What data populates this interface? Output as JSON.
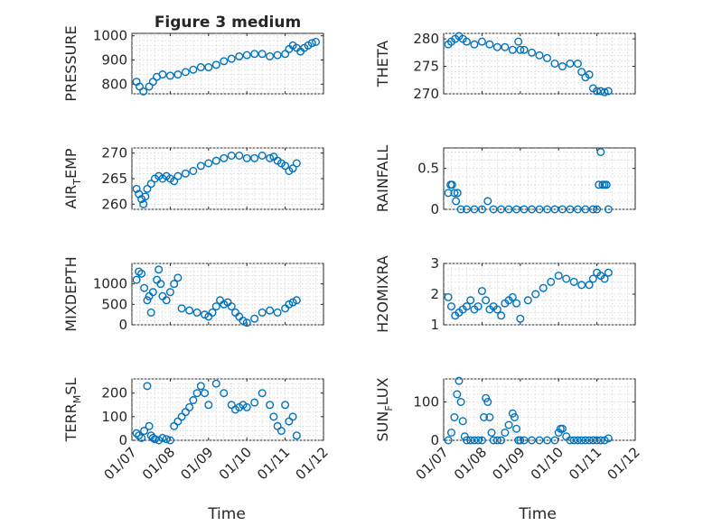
{
  "figure": {
    "title": "Figure 3 medium",
    "xlabel": "Time"
  },
  "series_color": "#0072BD",
  "chart_data": [
    {
      "id": "pressure",
      "type": "scatter",
      "title": "Figure 3 medium",
      "ylabel": "PRESSURE",
      "ylabel_main": "PRESSURE",
      "ylabel_sub": "",
      "ylabel_rest": "",
      "xlabel": "",
      "xlim": [
        0,
        5
      ],
      "ylim": [
        760,
        1010
      ],
      "xticks": [
        0,
        1,
        2,
        3,
        4,
        5
      ],
      "xticklabels": [],
      "yticks": [
        800,
        900,
        1000
      ],
      "yticklabels": [
        "800",
        "900",
        "1000"
      ],
      "grid": true,
      "x": [
        0.12,
        0.2,
        0.3,
        0.45,
        0.55,
        0.65,
        0.8,
        1.0,
        1.2,
        1.4,
        1.6,
        1.8,
        2.0,
        2.2,
        2.4,
        2.6,
        2.8,
        3.0,
        3.2,
        3.4,
        3.6,
        3.8,
        4.0,
        4.1,
        4.2,
        4.3,
        4.4,
        4.5,
        4.6,
        4.7,
        4.8
      ],
      "y": [
        810,
        790,
        770,
        790,
        810,
        830,
        840,
        835,
        840,
        850,
        860,
        870,
        870,
        880,
        895,
        905,
        915,
        920,
        925,
        925,
        915,
        920,
        925,
        945,
        960,
        950,
        935,
        950,
        960,
        970,
        975
      ]
    },
    {
      "id": "theta",
      "type": "scatter",
      "title": "",
      "ylabel": "THETA",
      "ylabel_main": "THETA",
      "ylabel_sub": "",
      "ylabel_rest": "",
      "xlabel": "",
      "xlim": [
        0,
        5
      ],
      "ylim": [
        270,
        281
      ],
      "xticks": [
        0,
        1,
        2,
        3,
        4,
        5
      ],
      "xticklabels": [],
      "yticks": [
        270,
        275,
        280
      ],
      "yticklabels": [
        "270",
        "275",
        "280"
      ],
      "grid": true,
      "x": [
        0.12,
        0.2,
        0.3,
        0.4,
        0.5,
        0.6,
        0.8,
        1.0,
        1.2,
        1.4,
        1.6,
        1.8,
        1.95,
        2.0,
        2.1,
        2.3,
        2.5,
        2.7,
        2.9,
        3.1,
        3.3,
        3.5,
        3.6,
        3.7,
        3.8,
        3.9,
        4.0,
        4.1,
        4.2,
        4.3
      ],
      "y": [
        279,
        279.5,
        280,
        280.5,
        280,
        279.5,
        279,
        279.5,
        279,
        278.5,
        278.5,
        278,
        279.5,
        278,
        278,
        277.5,
        277,
        276.5,
        275.5,
        275,
        275.5,
        275.5,
        274,
        273,
        273.5,
        271,
        270.5,
        270.5,
        270.3,
        270.5
      ]
    },
    {
      "id": "air_temp",
      "type": "scatter",
      "title": "",
      "ylabel": "AIR_TEMP",
      "ylabel_main": "AIR",
      "ylabel_sub": "T",
      "ylabel_rest": "EMP",
      "xlabel": "",
      "xlim": [
        0,
        5
      ],
      "ylim": [
        259,
        271
      ],
      "xticks": [
        0,
        1,
        2,
        3,
        4,
        5
      ],
      "xticklabels": [],
      "yticks": [
        260,
        265,
        270
      ],
      "yticklabels": [
        "260",
        "265",
        "270"
      ],
      "grid": true,
      "x": [
        0.12,
        0.18,
        0.25,
        0.3,
        0.35,
        0.4,
        0.5,
        0.6,
        0.7,
        0.8,
        0.9,
        1.0,
        1.1,
        1.2,
        1.4,
        1.6,
        1.8,
        2.0,
        2.2,
        2.4,
        2.6,
        2.8,
        3.0,
        3.2,
        3.4,
        3.6,
        3.7,
        3.8,
        3.9,
        4.0,
        4.1,
        4.2,
        4.3
      ],
      "y": [
        263,
        262,
        261,
        260,
        261.5,
        263,
        264,
        265,
        265.5,
        265,
        265.5,
        265,
        264.5,
        265.5,
        266,
        266.5,
        267.5,
        268,
        268.5,
        269,
        269.5,
        269.5,
        269,
        269,
        269.5,
        269,
        269.3,
        268.5,
        268,
        267.5,
        266.5,
        267,
        268
      ]
    },
    {
      "id": "rainfall",
      "type": "scatter",
      "title": "",
      "ylabel": "RAINFALL",
      "ylabel_main": "RAINFALL",
      "ylabel_sub": "",
      "ylabel_rest": "",
      "xlabel": "",
      "xlim": [
        0,
        5
      ],
      "ylim": [
        0,
        0.75
      ],
      "xticks": [
        0,
        1,
        2,
        3,
        4,
        5
      ],
      "xticklabels": [],
      "yticks": [
        0,
        0.5
      ],
      "yticklabels": [
        "0",
        "0.5"
      ],
      "grid": true,
      "x": [
        0.12,
        0.18,
        0.22,
        0.28,
        0.32,
        0.36,
        0.45,
        0.6,
        0.8,
        1.0,
        1.15,
        1.3,
        1.5,
        1.7,
        1.9,
        2.1,
        2.3,
        2.5,
        2.7,
        2.9,
        3.1,
        3.3,
        3.5,
        3.7,
        3.9,
        4.0,
        4.05,
        4.1,
        4.15,
        4.2,
        4.25,
        4.3
      ],
      "y": [
        0.2,
        0.3,
        0.3,
        0.2,
        0.1,
        0.2,
        0,
        0,
        0,
        0,
        0.1,
        0,
        0,
        0,
        0,
        0,
        0,
        0,
        0,
        0,
        0,
        0,
        0,
        0,
        0,
        0,
        0.3,
        0.7,
        0.3,
        0.3,
        0.3,
        0
      ]
    },
    {
      "id": "mixdepth",
      "type": "scatter",
      "title": "",
      "ylabel": "MIXDEPTH",
      "ylabel_main": "MIXDEPTH",
      "ylabel_sub": "",
      "ylabel_rest": "",
      "xlabel": "",
      "xlim": [
        0,
        5
      ],
      "ylim": [
        0,
        1500
      ],
      "xticks": [
        0,
        1,
        2,
        3,
        4,
        5
      ],
      "xticklabels": [],
      "yticks": [
        0,
        500,
        1000
      ],
      "yticklabels": [
        "0",
        "500",
        "1000"
      ],
      "grid": true,
      "x": [
        0.12,
        0.18,
        0.25,
        0.32,
        0.4,
        0.45,
        0.5,
        0.55,
        0.65,
        0.7,
        0.75,
        0.8,
        0.9,
        1.0,
        1.1,
        1.2,
        1.3,
        1.5,
        1.7,
        1.9,
        2.0,
        2.1,
        2.2,
        2.3,
        2.4,
        2.5,
        2.6,
        2.7,
        2.8,
        2.9,
        3.0,
        3.2,
        3.4,
        3.6,
        3.8,
        4.0,
        4.1,
        4.2,
        4.3
      ],
      "y": [
        1100,
        1300,
        1250,
        900,
        600,
        700,
        300,
        800,
        1100,
        1350,
        1000,
        700,
        600,
        800,
        1000,
        1150,
        400,
        350,
        300,
        250,
        200,
        300,
        450,
        600,
        500,
        550,
        450,
        300,
        200,
        100,
        50,
        150,
        300,
        350,
        300,
        400,
        500,
        550,
        600
      ]
    },
    {
      "id": "h2omixra",
      "type": "scatter",
      "title": "",
      "ylabel": "H2OMIXRA",
      "ylabel_main": "H2OMIXRA",
      "ylabel_sub": "",
      "ylabel_rest": "",
      "xlabel": "",
      "xlim": [
        0,
        5
      ],
      "ylim": [
        1,
        3
      ],
      "xticks": [
        0,
        1,
        2,
        3,
        4,
        5
      ],
      "xticklabels": [],
      "yticks": [
        1,
        2,
        3
      ],
      "yticklabels": [
        "1",
        "2",
        "3"
      ],
      "grid": true,
      "x": [
        0.12,
        0.2,
        0.3,
        0.4,
        0.5,
        0.6,
        0.7,
        0.8,
        0.9,
        1.0,
        1.1,
        1.2,
        1.3,
        1.4,
        1.5,
        1.6,
        1.7,
        1.8,
        1.9,
        2.0,
        2.2,
        2.4,
        2.6,
        2.8,
        3.0,
        3.2,
        3.4,
        3.6,
        3.8,
        3.9,
        4.0,
        4.1,
        4.2,
        4.3
      ],
      "y": [
        1.9,
        1.6,
        1.3,
        1.4,
        1.5,
        1.6,
        1.8,
        1.5,
        1.6,
        2.1,
        1.8,
        1.5,
        1.6,
        1.5,
        1.3,
        1.7,
        1.8,
        1.9,
        1.7,
        1.2,
        1.8,
        2.0,
        2.2,
        2.4,
        2.6,
        2.5,
        2.4,
        2.3,
        2.3,
        2.5,
        2.7,
        2.6,
        2.5,
        2.7
      ]
    },
    {
      "id": "terr_msl",
      "type": "scatter",
      "title": "",
      "ylabel": "TERR_MSL",
      "ylabel_main": "TERR",
      "ylabel_sub": "M",
      "ylabel_rest": "SL",
      "xlabel": "Time",
      "xlim": [
        0,
        5
      ],
      "ylim": [
        0,
        260
      ],
      "xticks": [
        0,
        1,
        2,
        3,
        4,
        5
      ],
      "xticklabels": [
        "01/07",
        "01/08",
        "01/09",
        "01/10",
        "01/11",
        "01/12"
      ],
      "yticks": [
        0,
        100,
        200
      ],
      "yticklabels": [
        "0",
        "100",
        "200"
      ],
      "grid": true,
      "x": [
        0.12,
        0.18,
        0.25,
        0.32,
        0.4,
        0.45,
        0.5,
        0.55,
        0.6,
        0.7,
        0.8,
        0.9,
        1.0,
        1.1,
        1.2,
        1.3,
        1.4,
        1.5,
        1.6,
        1.7,
        1.8,
        1.9,
        2.0,
        2.2,
        2.4,
        2.6,
        2.7,
        2.8,
        2.9,
        3.0,
        3.2,
        3.4,
        3.6,
        3.7,
        3.8,
        3.9,
        4.0,
        4.1,
        4.2,
        4.3
      ],
      "y": [
        30,
        20,
        10,
        40,
        230,
        60,
        20,
        10,
        5,
        0,
        10,
        5,
        0,
        60,
        80,
        100,
        120,
        140,
        170,
        200,
        230,
        200,
        150,
        240,
        200,
        150,
        130,
        140,
        150,
        140,
        160,
        200,
        150,
        100,
        60,
        40,
        150,
        80,
        100,
        20
      ]
    },
    {
      "id": "sun_flux",
      "type": "scatter",
      "title": "",
      "ylabel": "SUN_FLUX",
      "ylabel_main": "SUN",
      "ylabel_sub": "F",
      "ylabel_rest": "LUX",
      "xlabel": "Time",
      "xlim": [
        0,
        5
      ],
      "ylim": [
        0,
        160
      ],
      "xticks": [
        0,
        1,
        2,
        3,
        4,
        5
      ],
      "xticklabels": [
        "01/07",
        "01/08",
        "01/09",
        "01/10",
        "01/11",
        "01/12"
      ],
      "yticks": [
        0,
        100
      ],
      "yticklabels": [
        "0",
        "100"
      ],
      "grid": true,
      "x": [
        0.12,
        0.2,
        0.28,
        0.35,
        0.4,
        0.45,
        0.5,
        0.55,
        0.6,
        0.7,
        0.8,
        0.9,
        1.0,
        1.05,
        1.1,
        1.15,
        1.2,
        1.25,
        1.3,
        1.4,
        1.5,
        1.6,
        1.7,
        1.8,
        1.85,
        1.9,
        1.95,
        2.0,
        2.1,
        2.3,
        2.5,
        2.7,
        2.9,
        3.0,
        3.05,
        3.1,
        3.2,
        3.3,
        3.4,
        3.5,
        3.6,
        3.7,
        3.8,
        3.9,
        4.0,
        4.1,
        4.2,
        4.3
      ],
      "y": [
        0,
        20,
        60,
        120,
        155,
        100,
        50,
        10,
        0,
        0,
        0,
        0,
        0,
        60,
        110,
        100,
        60,
        20,
        0,
        0,
        0,
        20,
        40,
        70,
        60,
        30,
        0,
        0,
        0,
        0,
        0,
        0,
        0,
        20,
        30,
        30,
        10,
        0,
        0,
        0,
        0,
        0,
        0,
        0,
        0,
        0,
        0,
        5
      ]
    }
  ]
}
